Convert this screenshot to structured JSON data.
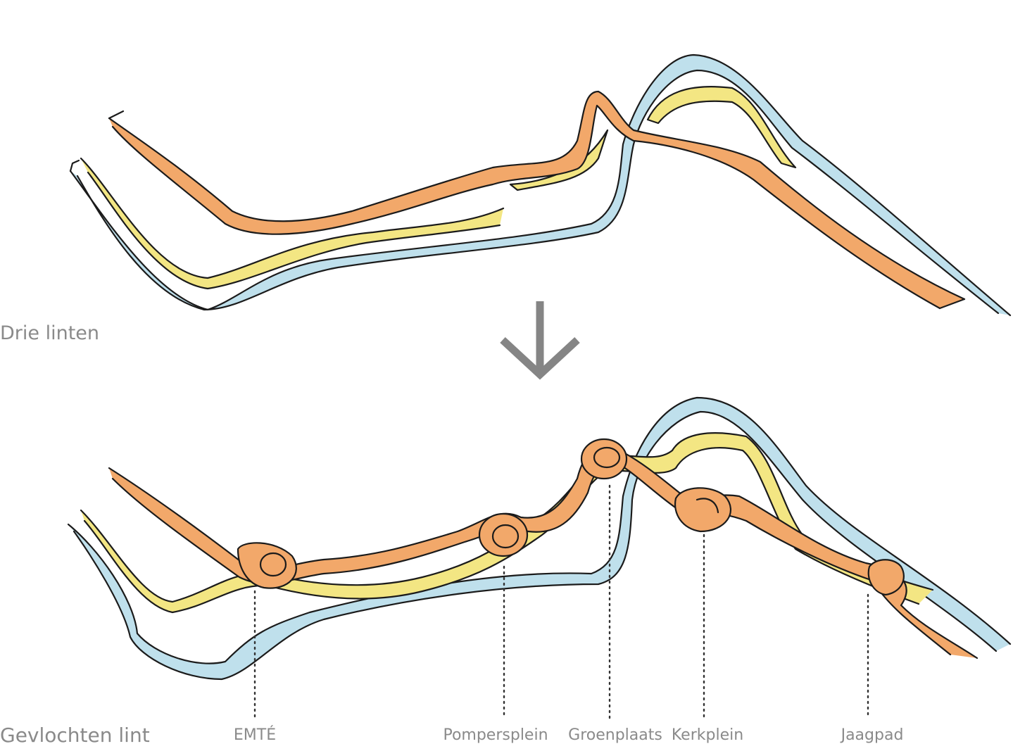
{
  "colors": {
    "orange_ribbon": "#f2a86a",
    "yellow_ribbon": "#f3e683",
    "blue_ribbon": "#bfe0ec",
    "arrow": "#858585",
    "label_text": "#8a8a8a"
  },
  "captions": {
    "top": "Drie linten",
    "bottom": "Gevlochten lint"
  },
  "arrow_icon": "down-arrow-icon",
  "places": [
    {
      "name": "EMTÉ"
    },
    {
      "name": "Pompersplein"
    },
    {
      "name": "Groenplaats"
    },
    {
      "name": "Kerkplein"
    },
    {
      "name": "Jaagpad"
    }
  ]
}
